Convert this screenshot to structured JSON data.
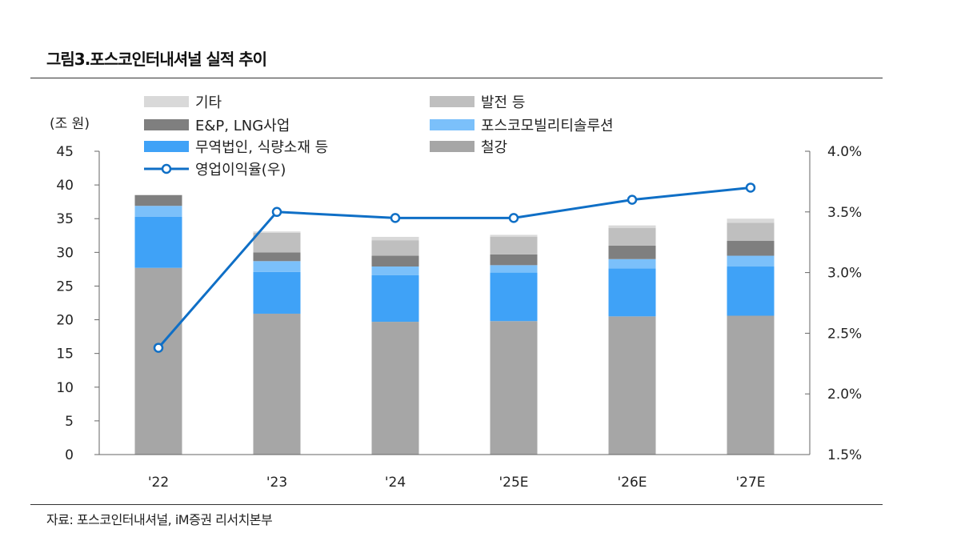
{
  "title": "그림3.포스코인터내셔널 실적 추이",
  "source": "자료:  포스코인터내셔널, iM증권 리서치본부",
  "chart_data": {
    "type": "bar",
    "stacked": true,
    "title": "그림3.포스코인터내셔널 실적 추이",
    "ylabel": "(조 원)",
    "ylim": [
      0,
      45
    ],
    "yticks": [
      0,
      5,
      10,
      15,
      20,
      25,
      30,
      35,
      40,
      45
    ],
    "y2lim": [
      1.5,
      4.0
    ],
    "y2ticks": [
      "1.5%",
      "2.0%",
      "2.5%",
      "3.0%",
      "3.5%",
      "4.0%"
    ],
    "grid": false,
    "legend_placement": "top",
    "categories": [
      "'22",
      "'23",
      "'24",
      "'25E",
      "'26E",
      "'27E"
    ],
    "series": [
      {
        "name": "철강",
        "color": "#a6a6a6",
        "values": [
          27.7,
          20.9,
          19.7,
          19.8,
          20.5,
          20.6
        ]
      },
      {
        "name": "무역법인, 식량소재 등",
        "color": "#3fa2f7",
        "values": [
          7.6,
          6.2,
          6.9,
          7.2,
          7.1,
          7.3
        ]
      },
      {
        "name": "포스코모빌리티솔루션",
        "color": "#7bc0fa",
        "values": [
          1.6,
          1.6,
          1.3,
          1.1,
          1.4,
          1.6
        ]
      },
      {
        "name": "E&P, LNG사업",
        "color": "#7f7f7f",
        "values": [
          1.6,
          1.3,
          1.6,
          1.6,
          2.0,
          2.2
        ]
      },
      {
        "name": "발전 등",
        "color": "#bfbfbf",
        "values": [
          0,
          2.9,
          2.3,
          2.6,
          2.6,
          2.7
        ]
      },
      {
        "name": "기타",
        "color": "#d9d9d9",
        "values": [
          0,
          0.2,
          0.5,
          0.3,
          0.4,
          0.6
        ]
      }
    ],
    "line": {
      "name": "영업이익율(우)",
      "color": "#0f6fc6",
      "axis": "right",
      "values": [
        2.38,
        3.5,
        3.45,
        3.45,
        3.6,
        3.7
      ]
    }
  },
  "legend_order": [
    "기타",
    "발전 등",
    "E&P, LNG사업",
    "포스코모빌리티솔루션",
    "무역법인, 식량소재 등",
    "철강",
    "영업이익율(우)"
  ]
}
